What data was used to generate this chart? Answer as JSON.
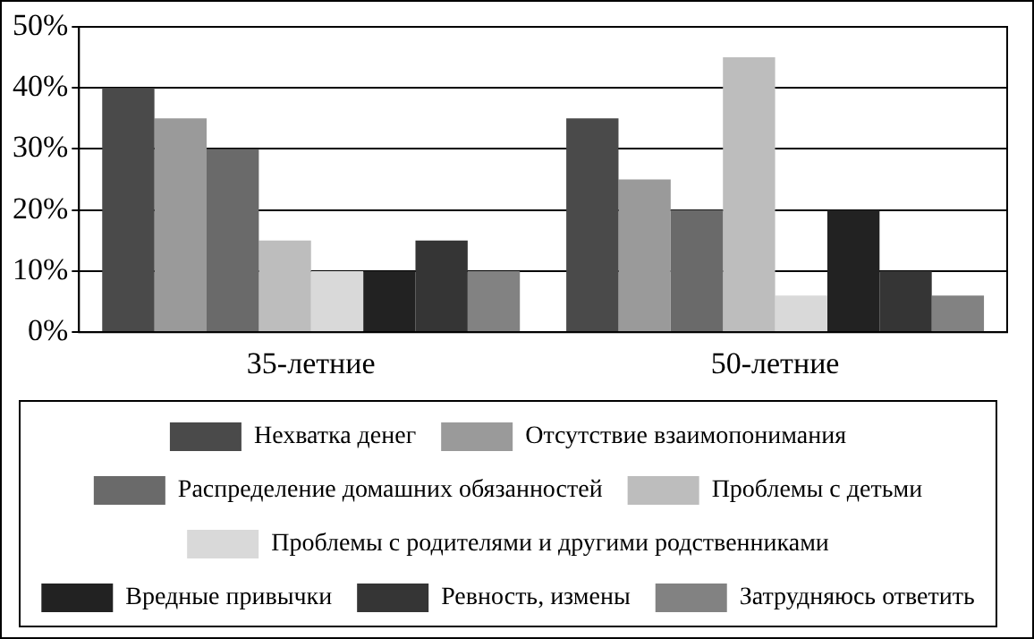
{
  "chart_data": {
    "type": "bar",
    "categories": [
      "35-летние",
      "50-летние"
    ],
    "series": [
      {
        "name": "Нехватка денег",
        "color": "#4a4a4a",
        "values": [
          40,
          35
        ]
      },
      {
        "name": "Отсутствие взаимопонимания",
        "color": "#9a9a9a",
        "values": [
          35,
          25
        ]
      },
      {
        "name": "Распределение домашних обязанностей",
        "color": "#6a6a6a",
        "values": [
          30,
          20
        ]
      },
      {
        "name": "Проблемы с детьми",
        "color": "#bdbdbd",
        "values": [
          15,
          45
        ]
      },
      {
        "name": "Проблемы с родителями и другими родственниками",
        "color": "#d9d9d9",
        "values": [
          10,
          6
        ]
      },
      {
        "name": "Вредные привычки",
        "color": "#222222",
        "values": [
          10,
          20
        ]
      },
      {
        "name": "Ревность, измены",
        "color": "#353535",
        "values": [
          15,
          10
        ]
      },
      {
        "name": "Затрудняюсь ответить",
        "color": "#828282",
        "values": [
          10,
          6
        ]
      }
    ],
    "ylim": [
      0,
      50
    ],
    "yticks": [
      {
        "value": 0,
        "label": "0%"
      },
      {
        "value": 10,
        "label": "10%"
      },
      {
        "value": 20,
        "label": "20%"
      },
      {
        "value": 30,
        "label": "30%"
      },
      {
        "value": 40,
        "label": "40%"
      },
      {
        "value": 50,
        "label": "50%"
      }
    ],
    "grid": "y",
    "legend": "bottom"
  }
}
